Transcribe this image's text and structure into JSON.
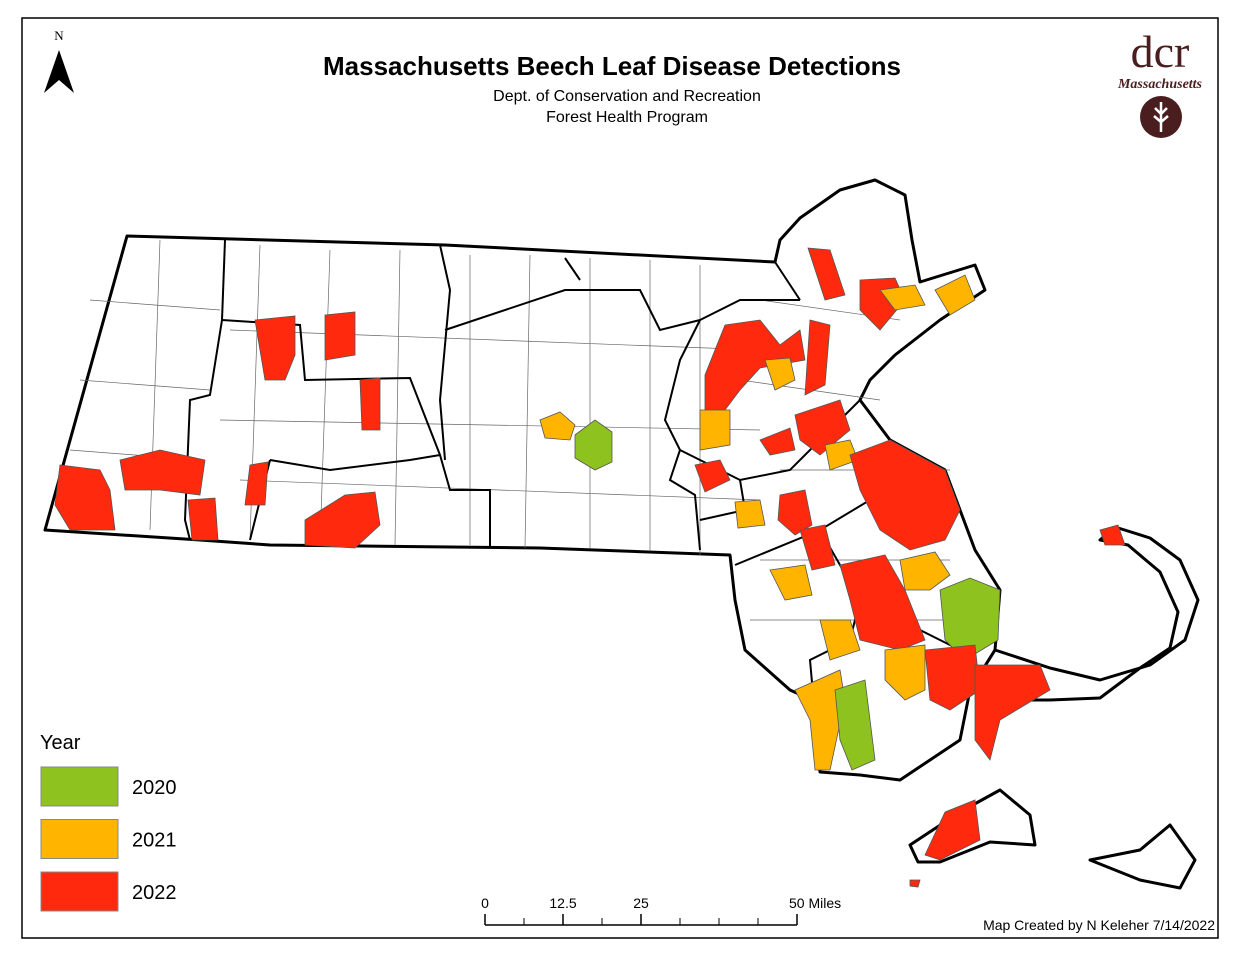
{
  "header": {
    "title": "Massachusetts Beech Leaf Disease Detections",
    "subtitle_lines": [
      "Dept. of Conservation and Recreation",
      "Forest Health Program"
    ]
  },
  "north_arrow": {
    "label": "N"
  },
  "logo": {
    "text": "dcr",
    "subtext": "Massachusetts"
  },
  "legend": {
    "title": "Year",
    "items": [
      {
        "label": "2020",
        "color": "#8dc21f"
      },
      {
        "label": "2021",
        "color": "#ffb400"
      },
      {
        "label": "2022",
        "color": "#ff2a0d"
      }
    ]
  },
  "scale_bar": {
    "ticks": [
      {
        "value": 0,
        "label": "0"
      },
      {
        "value": 12.5,
        "label": "12.5"
      },
      {
        "value": 25,
        "label": "25"
      },
      {
        "value": 50,
        "label": "50 Miles"
      }
    ]
  },
  "credit": "Map Created by N Keleher 7/14/2022"
}
